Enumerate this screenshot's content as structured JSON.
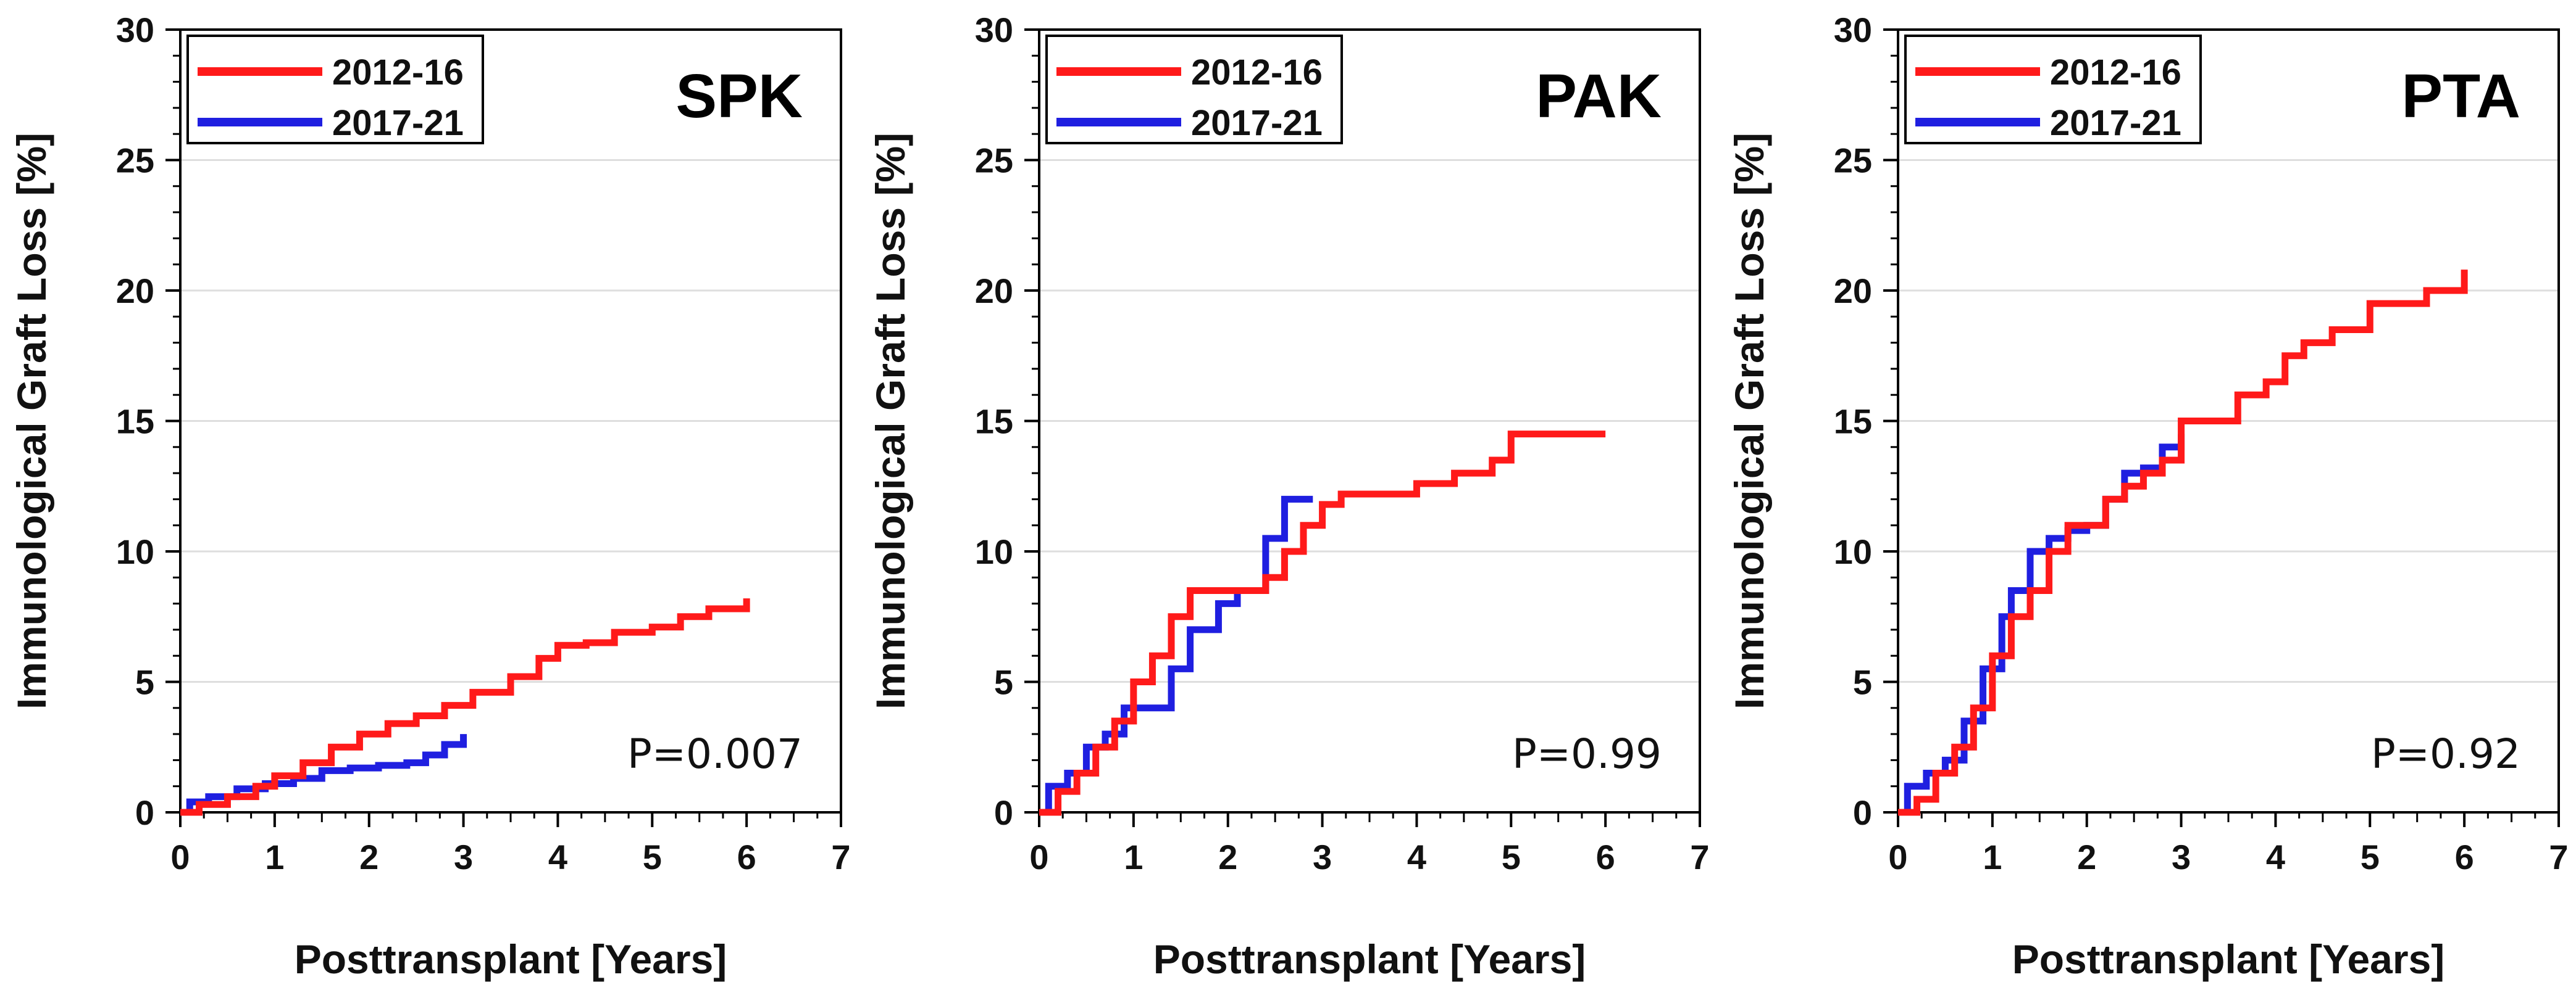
{
  "colors": {
    "series_2012": "#ff1a1a",
    "series_2017": "#1f1fe0",
    "grid": "#dedede",
    "axis": "#000000"
  },
  "chart_data": [
    {
      "type": "line",
      "step": true,
      "panel_label": "SPK",
      "p_value": "P=0.007",
      "xlabel": "Posttransplant [Years]",
      "ylabel": "Immunological Graft Loss [%]",
      "xlim": [
        0,
        7
      ],
      "ylim": [
        0,
        30
      ],
      "xticks": [
        0,
        1,
        2,
        3,
        4,
        5,
        6,
        7
      ],
      "yticks": [
        0,
        5,
        10,
        15,
        20,
        25,
        30
      ],
      "grid": "horizontal",
      "legend": "top-left",
      "series": [
        {
          "name": "2012-16",
          "color": "#ff1a1a",
          "x": [
            0,
            0.2,
            0.5,
            0.8,
            1.0,
            1.3,
            1.6,
            1.9,
            2.2,
            2.5,
            2.8,
            3.1,
            3.5,
            3.8,
            4.0,
            4.3,
            4.6,
            5.0,
            5.3,
            5.6,
            6.0
          ],
          "y": [
            0,
            0.3,
            0.6,
            1.0,
            1.4,
            1.9,
            2.5,
            3.0,
            3.4,
            3.7,
            4.1,
            4.6,
            5.2,
            5.9,
            6.4,
            6.5,
            6.9,
            7.1,
            7.5,
            7.8,
            8.2
          ]
        },
        {
          "name": "2017-21",
          "color": "#1f1fe0",
          "x": [
            0,
            0.1,
            0.3,
            0.6,
            0.9,
            1.2,
            1.5,
            1.8,
            2.1,
            2.4,
            2.6,
            2.8,
            3.0
          ],
          "y": [
            0,
            0.4,
            0.6,
            0.9,
            1.1,
            1.3,
            1.6,
            1.7,
            1.8,
            1.9,
            2.2,
            2.6,
            3.0
          ]
        }
      ]
    },
    {
      "type": "line",
      "step": true,
      "panel_label": "PAK",
      "p_value": "P=0.99",
      "xlabel": "Posttransplant [Years]",
      "ylabel": "Immunological Graft Loss [%]",
      "xlim": [
        0,
        7
      ],
      "ylim": [
        0,
        30
      ],
      "xticks": [
        0,
        1,
        2,
        3,
        4,
        5,
        6,
        7
      ],
      "yticks": [
        0,
        5,
        10,
        15,
        20,
        25,
        30
      ],
      "grid": "horizontal",
      "legend": "top-left",
      "series": [
        {
          "name": "2012-16",
          "color": "#ff1a1a",
          "x": [
            0,
            0.2,
            0.4,
            0.6,
            0.8,
            1.0,
            1.2,
            1.4,
            1.6,
            2.0,
            2.4,
            2.6,
            2.8,
            3.0,
            3.2,
            3.6,
            4.0,
            4.4,
            4.8,
            5.0,
            5.5,
            6.0
          ],
          "y": [
            0,
            0.8,
            1.5,
            2.5,
            3.5,
            5.0,
            6.0,
            7.5,
            8.5,
            8.5,
            9.0,
            10.0,
            11.0,
            11.8,
            12.2,
            12.2,
            12.6,
            13.0,
            13.5,
            14.5,
            14.5,
            14.5
          ]
        },
        {
          "name": "2017-21",
          "color": "#1f1fe0",
          "x": [
            0,
            0.1,
            0.3,
            0.5,
            0.7,
            0.9,
            1.2,
            1.4,
            1.6,
            1.9,
            2.1,
            2.4,
            2.6,
            2.9
          ],
          "y": [
            0,
            1.0,
            1.5,
            2.5,
            3.0,
            4.0,
            4.0,
            5.5,
            7.0,
            8.0,
            8.5,
            10.5,
            12.0,
            12.0
          ]
        }
      ]
    },
    {
      "type": "line",
      "step": true,
      "panel_label": "PTA",
      "p_value": "P=0.92",
      "xlabel": "Posttransplant [Years]",
      "ylabel": "Immunological Graft Loss [%]",
      "xlim": [
        0,
        7
      ],
      "ylim": [
        0,
        30
      ],
      "xticks": [
        0,
        1,
        2,
        3,
        4,
        5,
        6,
        7
      ],
      "yticks": [
        0,
        5,
        10,
        15,
        20,
        25,
        30
      ],
      "grid": "horizontal",
      "legend": "top-left",
      "series": [
        {
          "name": "2012-16",
          "color": "#ff1a1a",
          "x": [
            0,
            0.2,
            0.4,
            0.6,
            0.8,
            1.0,
            1.2,
            1.4,
            1.6,
            1.8,
            2.0,
            2.2,
            2.4,
            2.6,
            2.8,
            3.0,
            3.3,
            3.6,
            3.9,
            4.1,
            4.3,
            4.6,
            5.0,
            5.3,
            5.6,
            6.0
          ],
          "y": [
            0,
            0.5,
            1.5,
            2.5,
            4.0,
            6.0,
            7.5,
            8.5,
            10.0,
            11.0,
            11.0,
            12.0,
            12.5,
            13.0,
            13.5,
            15.0,
            15.0,
            16.0,
            16.5,
            17.5,
            18.0,
            18.5,
            19.5,
            19.5,
            20.0,
            20.8
          ]
        },
        {
          "name": "2017-21",
          "color": "#1f1fe0",
          "x": [
            0,
            0.1,
            0.3,
            0.5,
            0.7,
            0.9,
            1.1,
            1.2,
            1.4,
            1.6,
            1.8,
            2.0,
            2.2,
            2.4,
            2.6,
            2.8,
            3.0
          ],
          "y": [
            0,
            1.0,
            1.5,
            2.0,
            3.5,
            5.5,
            7.5,
            8.5,
            10.0,
            10.5,
            10.8,
            11.0,
            12.0,
            13.0,
            13.2,
            14.0,
            14.5
          ]
        }
      ]
    }
  ]
}
